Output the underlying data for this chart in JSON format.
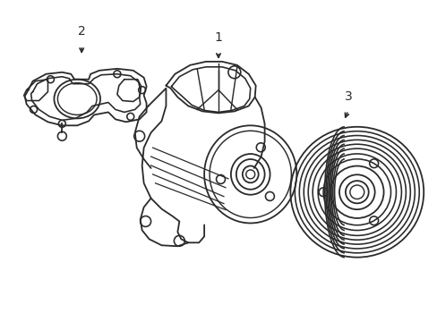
{
  "background_color": "#ffffff",
  "line_color": "#2a2a2a",
  "line_width": 1.3,
  "label_fontsize": 10,
  "fig_w": 4.89,
  "fig_h": 3.6,
  "dpi": 100
}
